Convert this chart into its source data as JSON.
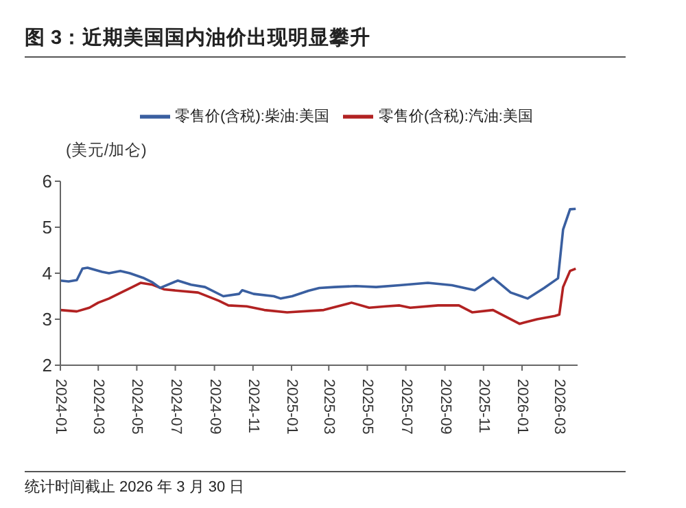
{
  "chart_data": {
    "type": "line",
    "title": "图 3：近期美国国内油价出现明显攀升",
    "ylabel": "(美元/加仑)",
    "annotations": [
      "统计时间截止 2026 年 3 月 30 日"
    ],
    "legend": "top",
    "grid": false,
    "marker": "none",
    "line_style": "solid",
    "ylim": [
      2,
      6
    ],
    "yticks": [
      2,
      3,
      4,
      5,
      6
    ],
    "xlim": [
      "2024-01",
      "2026-03-30"
    ],
    "xticks": [
      "2024-01",
      "2024-03",
      "2024-05",
      "2024-07",
      "2024-09",
      "2024-11",
      "2025-01",
      "2025-03",
      "2025-05",
      "2025-07",
      "2025-09",
      "2025-11",
      "2026-01",
      "2026-03"
    ],
    "series": [
      {
        "name": "零售价(含税):汽油:美国",
        "color": "#b22222",
        "x": [
          "2024-01-01",
          "2024-01-27",
          "2024-02-16",
          "2024-03-01",
          "2024-03-18",
          "2024-04-09",
          "2024-04-24",
          "2024-05-07",
          "2024-05-26",
          "2024-06-13",
          "2024-07-05",
          "2024-08-06",
          "2024-09-08",
          "2024-09-23",
          "2024-10-22",
          "2024-11-19",
          "2024-12-25",
          "2025-02-21",
          "2025-04-06",
          "2025-05-04",
          "2025-05-30",
          "2025-06-21",
          "2025-07-08",
          "2025-08-21",
          "2025-09-23",
          "2025-10-14",
          "2025-11-16",
          "2025-12-07",
          "2025-12-28",
          "2026-01-25",
          "2026-02-22",
          "2026-03-01",
          "2026-03-07",
          "2026-03-18",
          "2026-03-27"
        ],
        "values": [
          3.2,
          3.17,
          3.25,
          3.36,
          3.45,
          3.6,
          3.7,
          3.79,
          3.75,
          3.65,
          3.62,
          3.58,
          3.4,
          3.3,
          3.28,
          3.2,
          3.15,
          3.2,
          3.36,
          3.25,
          3.28,
          3.3,
          3.25,
          3.3,
          3.3,
          3.15,
          3.2,
          3.05,
          2.9,
          3.0,
          3.07,
          3.1,
          3.7,
          4.05,
          4.1
        ]
      },
      {
        "name": "零售价(含税):柴油:美国",
        "color": "#3a5fa0",
        "x": [
          "2024-01-01",
          "2024-01-14",
          "2024-01-27",
          "2024-02-05",
          "2024-02-13",
          "2024-03-07",
          "2024-03-18",
          "2024-04-05",
          "2024-04-20",
          "2024-05-11",
          "2024-05-26",
          "2024-06-07",
          "2024-07-05",
          "2024-07-26",
          "2024-08-17",
          "2024-09-15",
          "2024-10-10",
          "2024-10-15",
          "2024-11-02",
          "2024-12-04",
          "2024-12-15",
          "2025-01-02",
          "2025-01-28",
          "2025-02-14",
          "2025-03-10",
          "2025-04-13",
          "2025-05-15",
          "2025-06-21",
          "2025-08-05",
          "2025-09-12",
          "2025-10-18",
          "2025-11-16",
          "2025-12-14",
          "2026-01-10",
          "2026-02-05",
          "2026-02-27",
          "2026-03-07",
          "2026-03-18",
          "2026-03-27"
        ],
        "values": [
          3.84,
          3.82,
          3.85,
          4.1,
          4.12,
          4.03,
          4.0,
          4.05,
          4.0,
          3.9,
          3.8,
          3.68,
          3.84,
          3.75,
          3.7,
          3.5,
          3.55,
          3.63,
          3.55,
          3.5,
          3.45,
          3.5,
          3.62,
          3.68,
          3.7,
          3.72,
          3.7,
          3.74,
          3.79,
          3.74,
          3.63,
          3.9,
          3.58,
          3.45,
          3.68,
          3.89,
          4.95,
          5.39,
          5.4
        ]
      }
    ]
  }
}
